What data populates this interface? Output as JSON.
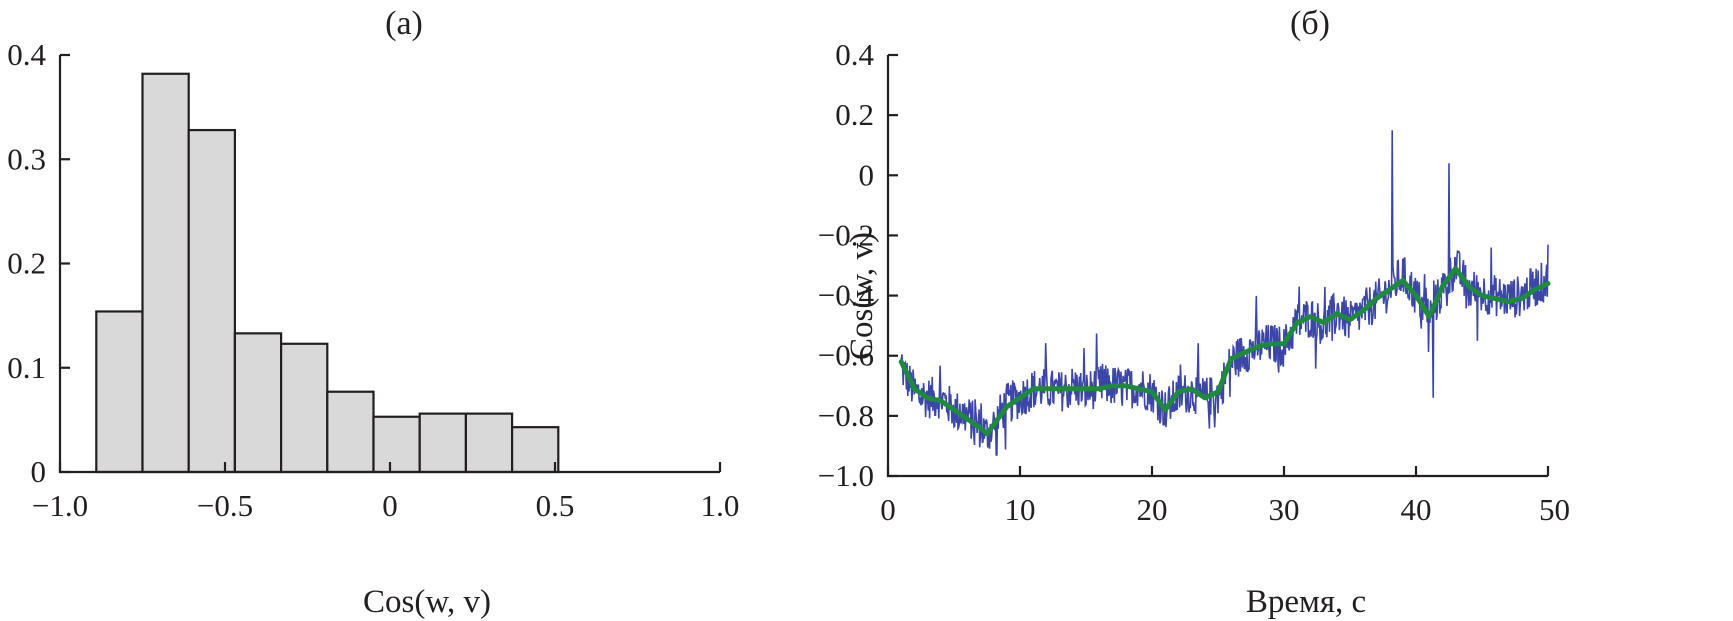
{
  "chart_data": [
    {
      "type": "bar",
      "panel_label": "(а)",
      "xlabel": "Cos(w, v)",
      "ylabel": "",
      "xlim": [
        -1.0,
        1.0
      ],
      "ylim": [
        0,
        0.4
      ],
      "xticks": [
        "−1.0",
        "−0.5",
        "0",
        "0.5",
        "1.0"
      ],
      "yticks": [
        "0",
        "0.1",
        "0.2",
        "0.3",
        "0.4"
      ],
      "bin_edges": [
        -0.89,
        -0.75,
        -0.61,
        -0.47,
        -0.33,
        -0.19,
        -0.05,
        0.09,
        0.23,
        0.37,
        0.51
      ],
      "values": [
        0.154,
        0.382,
        0.328,
        0.133,
        0.123,
        0.077,
        0.053,
        0.056,
        0.056,
        0.043
      ]
    },
    {
      "type": "line",
      "panel_label": "(б)",
      "xlabel": "Время, с",
      "ylabel": "Cos(w, v)",
      "xlim": [
        0,
        50
      ],
      "ylim": [
        -1.0,
        0.4
      ],
      "xticks": [
        "0",
        "10",
        "20",
        "30",
        "40",
        "50"
      ],
      "yticks": [
        "−1.0",
        "−0.8",
        "−0.6",
        "−0.4",
        "−0.2",
        "0",
        "0.2",
        "0.4"
      ],
      "series": [
        {
          "role": "raw",
          "color": "#3c46a8",
          "x": [
            1,
            2,
            3,
            4,
            5,
            6,
            7,
            7.5,
            8,
            9,
            10,
            11,
            12,
            13,
            14,
            15,
            16,
            17,
            18,
            19,
            20,
            21,
            22,
            23,
            24,
            25,
            26,
            27,
            28,
            29,
            30,
            31,
            32,
            33,
            34,
            35,
            36,
            37,
            38,
            39,
            40,
            41,
            42,
            43,
            44,
            45,
            46,
            47,
            48,
            49,
            50
          ],
          "y": [
            -0.64,
            -0.72,
            -0.74,
            -0.74,
            -0.78,
            -0.8,
            -0.84,
            -0.86,
            -0.83,
            -0.76,
            -0.74,
            -0.71,
            -0.71,
            -0.72,
            -0.7,
            -0.72,
            -0.7,
            -0.7,
            -0.71,
            -0.7,
            -0.72,
            -0.78,
            -0.73,
            -0.72,
            -0.74,
            -0.73,
            -0.62,
            -0.59,
            -0.57,
            -0.56,
            -0.57,
            -0.49,
            -0.47,
            -0.5,
            -0.45,
            -0.49,
            -0.45,
            -0.42,
            -0.38,
            -0.33,
            -0.4,
            -0.47,
            -0.38,
            -0.3,
            -0.38,
            -0.39,
            -0.4,
            -0.41,
            -0.4,
            -0.37,
            -0.35
          ],
          "noise_amplitude": 0.07,
          "min": -0.93,
          "max": 0.15
        },
        {
          "role": "smoothed",
          "color": "#1d8a3e",
          "x": [
            1,
            2,
            3,
            4,
            5,
            6,
            7,
            7.5,
            8,
            9,
            10,
            11,
            12,
            13,
            14,
            15,
            16,
            17,
            18,
            19,
            20,
            21,
            22,
            23,
            24,
            25,
            26,
            27,
            28,
            29,
            30,
            31,
            32,
            33,
            34,
            35,
            36,
            37,
            38,
            39,
            40,
            41,
            42,
            43,
            44,
            45,
            46,
            47,
            48,
            49,
            50
          ],
          "y": [
            -0.62,
            -0.71,
            -0.74,
            -0.75,
            -0.78,
            -0.81,
            -0.84,
            -0.86,
            -0.83,
            -0.77,
            -0.74,
            -0.71,
            -0.71,
            -0.71,
            -0.71,
            -0.71,
            -0.71,
            -0.7,
            -0.7,
            -0.71,
            -0.72,
            -0.78,
            -0.72,
            -0.71,
            -0.74,
            -0.72,
            -0.61,
            -0.59,
            -0.57,
            -0.56,
            -0.56,
            -0.49,
            -0.47,
            -0.49,
            -0.46,
            -0.48,
            -0.45,
            -0.41,
            -0.38,
            -0.35,
            -0.4,
            -0.47,
            -0.37,
            -0.31,
            -0.37,
            -0.4,
            -0.41,
            -0.42,
            -0.41,
            -0.38,
            -0.36
          ]
        }
      ]
    }
  ]
}
